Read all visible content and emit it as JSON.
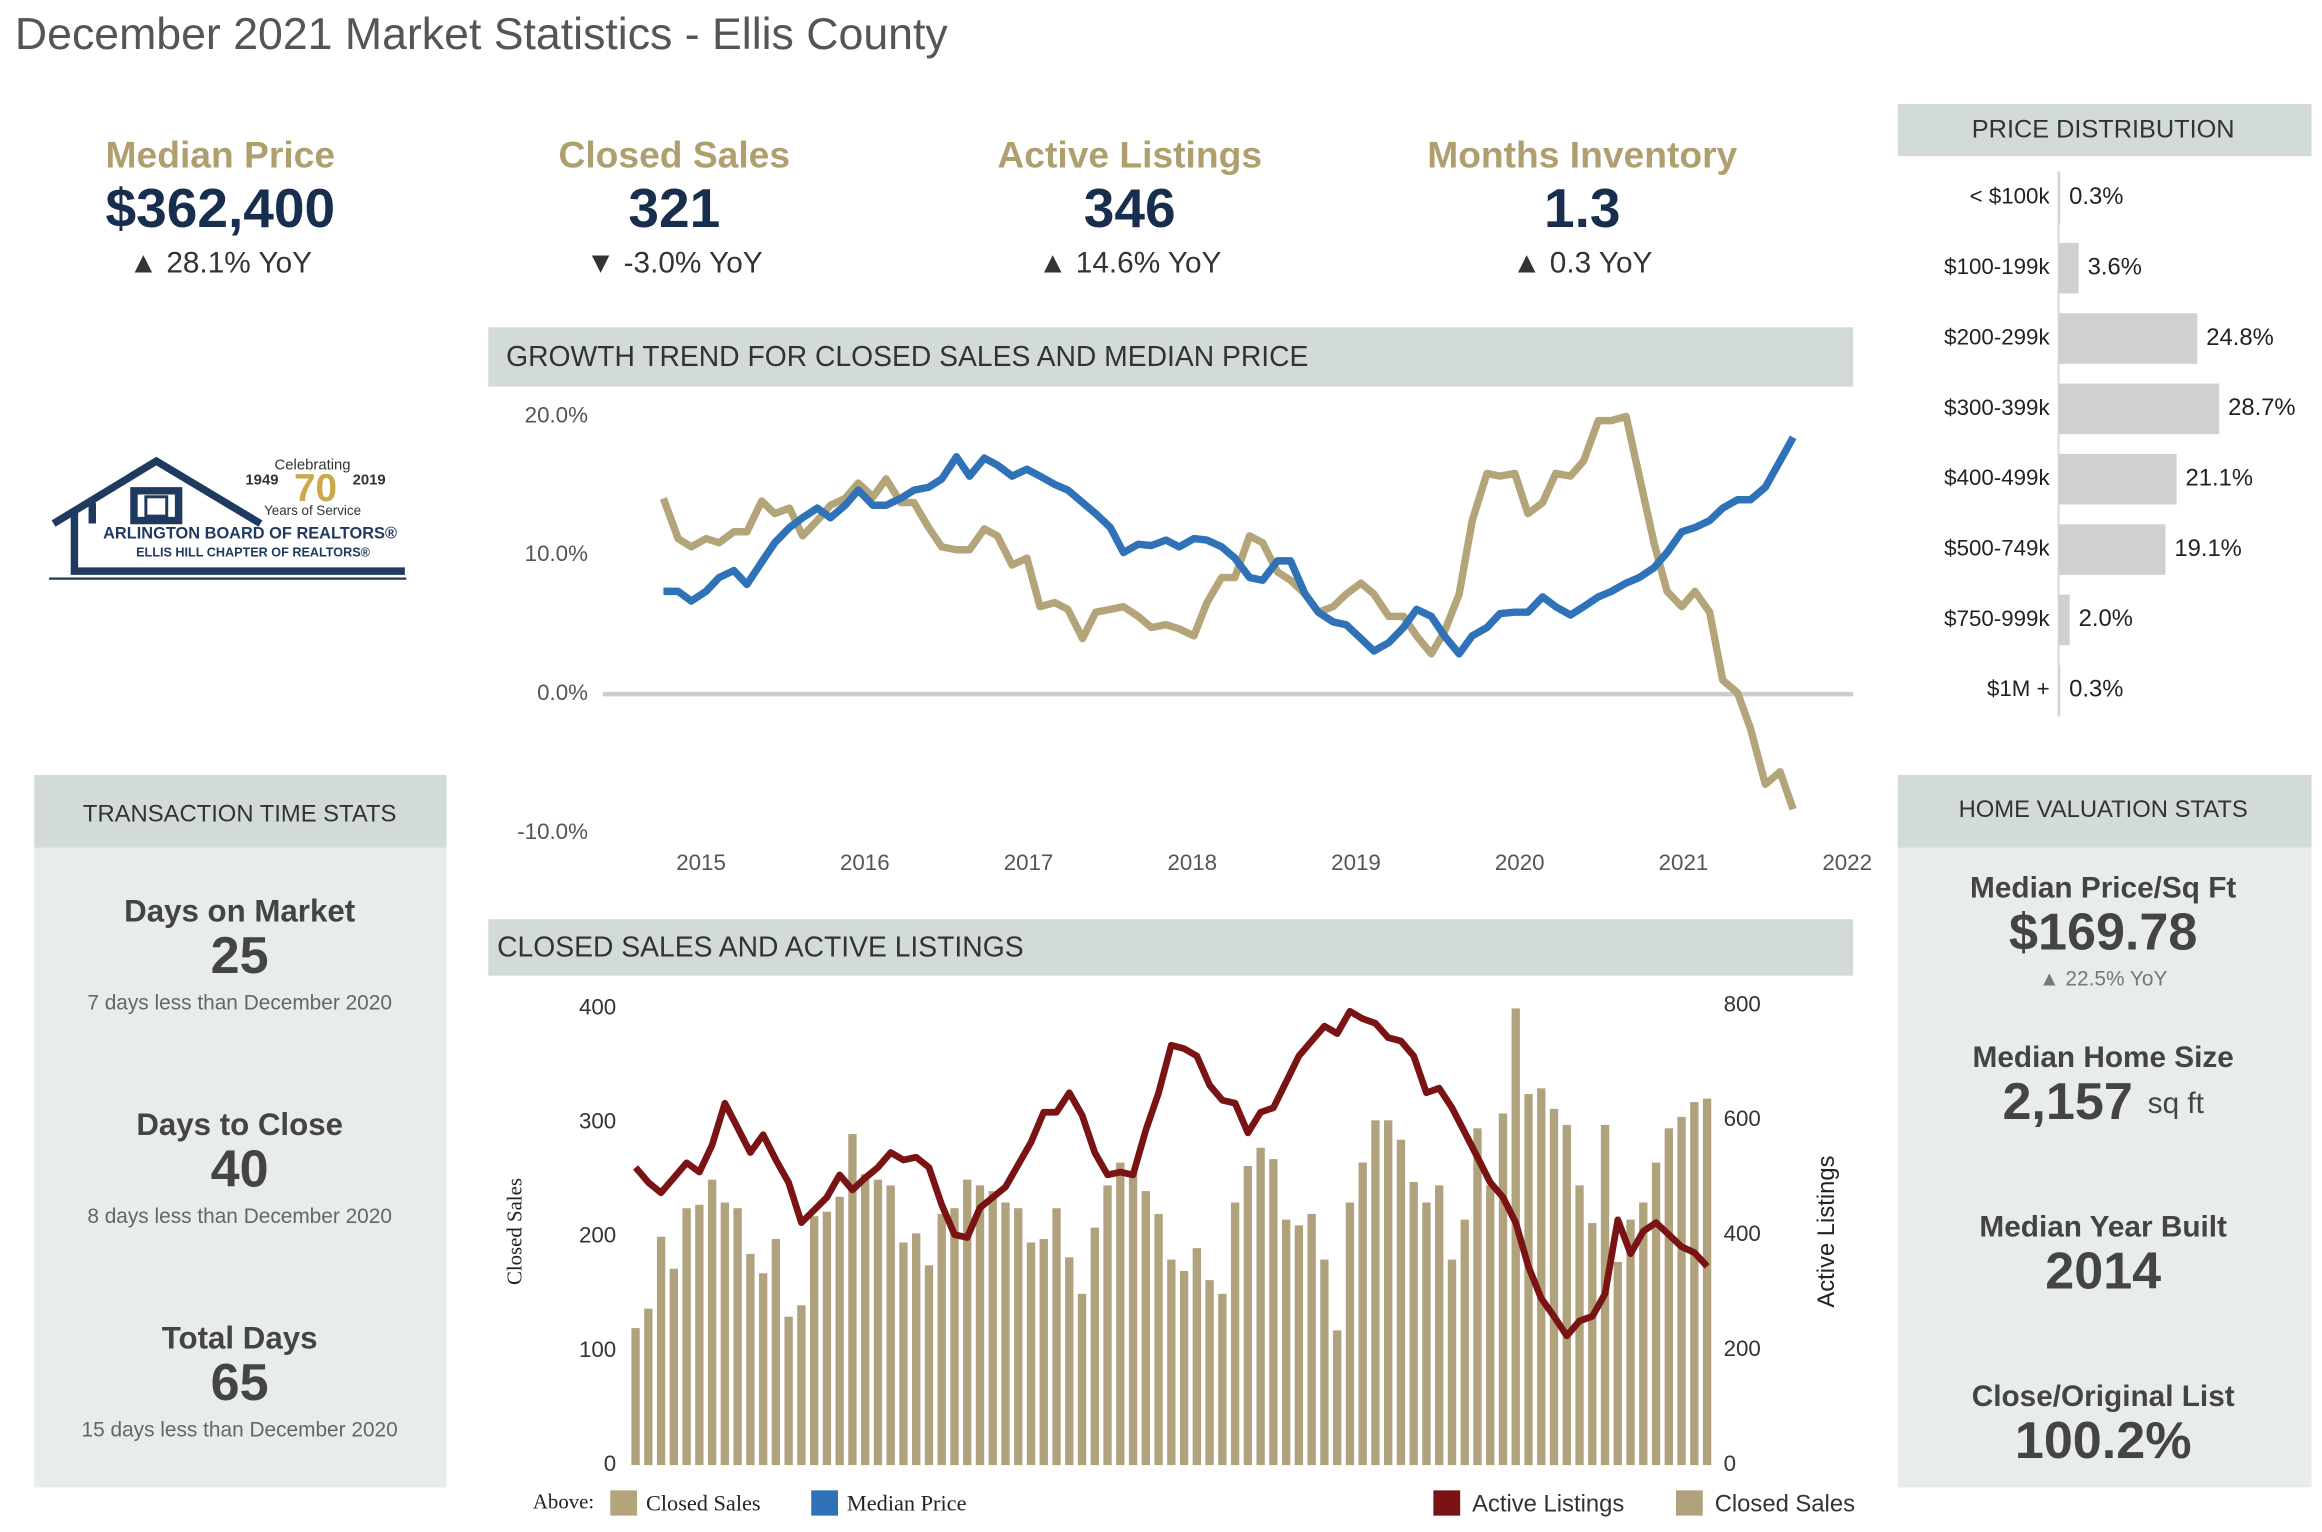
{
  "title": "December 2021 Market Statistics - Ellis County",
  "kpis": [
    {
      "label": "Median Price",
      "value": "$362,400",
      "change": "▲ 28.1% YoY"
    },
    {
      "label": "Closed Sales",
      "value": "321",
      "change": "▼ -3.0% YoY"
    },
    {
      "label": "Active Listings",
      "value": "346",
      "change": "▲ 14.6% YoY"
    },
    {
      "label": "Months Inventory",
      "value": "1.3",
      "change": "▲ 0.3 YoY"
    }
  ],
  "logo": {
    "celebrating": "Celebrating",
    "start_year": "1949",
    "years": "70",
    "end_year": "2019",
    "service": "Years of Service",
    "name": "ARLINGTON BOARD OF REALTORS®",
    "chapter": "ELLIS HILL CHAPTER OF REALTORS®"
  },
  "transaction_stats": {
    "title": "TRANSACTION TIME STATS",
    "items": [
      {
        "label": "Days on Market",
        "value": "25",
        "note": "7 days less than December 2020"
      },
      {
        "label": "Days to Close",
        "value": "40",
        "note": "8 days less than December 2020"
      },
      {
        "label": "Total Days",
        "value": "65",
        "note": "15 days less than December 2020"
      }
    ]
  },
  "home_valuation_stats": {
    "title": "HOME VALUATION STATS",
    "items": [
      {
        "label": "Median Price/Sq Ft",
        "value": "$169.78",
        "note": "▲ 22.5% YoY"
      },
      {
        "label": "Median Home Size",
        "value": "2,157",
        "unit": "sq ft"
      },
      {
        "label": "Median Year Built",
        "value": "2014"
      },
      {
        "label": "Close/Original List",
        "value": "100.2%"
      }
    ]
  },
  "chart_data": [
    {
      "type": "hbar",
      "title": "PRICE DISTRIBUTION",
      "categories": [
        "< $100k",
        "$100-199k",
        "$200-299k",
        "$300-399k",
        "$400-499k",
        "$500-749k",
        "$750-999k",
        "$1M +"
      ],
      "values": [
        0.3,
        3.6,
        24.8,
        28.7,
        21.1,
        19.1,
        2.0,
        0.3
      ],
      "value_labels": [
        "0.3%",
        "3.6%",
        "24.8%",
        "28.7%",
        "21.1%",
        "19.1%",
        "2.0%",
        "0.3%"
      ],
      "color": "#d0d0d0"
    },
    {
      "type": "line",
      "title": "GROWTH TREND FOR CLOSED SALES AND MEDIAN PRICE",
      "legend_label": "Above:",
      "x": [
        2014.77,
        2014.86,
        2014.94,
        2015.03,
        2015.11,
        2015.2,
        2015.28,
        2015.37,
        2015.45,
        2015.54,
        2015.62,
        2015.71,
        2015.79,
        2015.88,
        2015.96,
        2016.05,
        2016.13,
        2016.22,
        2016.3,
        2016.39,
        2016.47,
        2016.56,
        2016.64,
        2016.73,
        2016.81,
        2016.9,
        2016.99,
        2017.07,
        2017.16,
        2017.24,
        2017.33,
        2017.41,
        2017.5,
        2017.58,
        2017.67,
        2017.75,
        2017.84,
        2017.92,
        2018.01,
        2018.09,
        2018.18,
        2018.26,
        2018.35,
        2018.43,
        2018.52,
        2018.6,
        2018.69,
        2018.77,
        2018.86,
        2018.94,
        2019.03,
        2019.11,
        2019.2,
        2019.29,
        2019.37,
        2019.46,
        2019.54,
        2019.63,
        2019.71,
        2019.8,
        2019.88,
        2019.97,
        2020.05,
        2020.14,
        2020.22,
        2020.31,
        2020.39,
        2020.48,
        2020.56,
        2020.65,
        2020.73,
        2020.82,
        2020.9,
        2020.99,
        2021.07,
        2021.16,
        2021.24,
        2021.33,
        2021.41,
        2021.5,
        2021.59,
        2021.67
      ],
      "xlim": [
        2014.5,
        2022
      ],
      "xticks": [
        2015,
        2016,
        2017,
        2018,
        2019,
        2020,
        2021,
        2022
      ],
      "ylim": [
        -10,
        20
      ],
      "yticks": [
        {
          "value": 20,
          "label": "20.0%"
        },
        {
          "value": 10,
          "label": "10.0%"
        },
        {
          "value": 0,
          "label": "0.0%"
        },
        {
          "value": -10,
          "label": "-10.0%"
        }
      ],
      "zero_line": true,
      "series": [
        {
          "name": "Closed Sales",
          "color": "#b3a579",
          "values": [
            14.1,
            11.2,
            10.6,
            11.2,
            10.9,
            11.7,
            11.7,
            13.9,
            13,
            13.4,
            11.4,
            12.5,
            13.6,
            14.1,
            15.2,
            14.2,
            15.5,
            13.8,
            13.8,
            12,
            10.6,
            10.4,
            10.4,
            11.9,
            11.4,
            9.3,
            9.8,
            6.3,
            6.6,
            6.1,
            4,
            5.9,
            6.1,
            6.3,
            5.6,
            4.8,
            5,
            4.7,
            4.2,
            6.6,
            8.4,
            8.4,
            11.4,
            10.9,
            8.8,
            8.2,
            7.2,
            5.9,
            6.3,
            7.2,
            8,
            7.2,
            5.6,
            5.6,
            4.2,
            2.9,
            4.5,
            7.2,
            12.5,
            15.9,
            15.7,
            15.9,
            13,
            13.8,
            15.9,
            15.7,
            16.8,
            19.7,
            19.7,
            20,
            15.7,
            10.9,
            7.4,
            6.3,
            7.4,
            5.9,
            1,
            0.1,
            -2.5,
            -6.5,
            -5.6,
            -8.3
          ]
        },
        {
          "name": "Median Price",
          "color": "#2f72b8",
          "values": [
            7.4,
            7.4,
            6.7,
            7.4,
            8.4,
            8.9,
            7.9,
            9.5,
            10.9,
            12,
            12.7,
            13.4,
            12.7,
            13.6,
            14.7,
            13.6,
            13.6,
            14.1,
            14.7,
            14.9,
            15.5,
            17.1,
            15.7,
            17,
            16.5,
            15.7,
            16.2,
            15.7,
            15.1,
            14.7,
            13.8,
            13,
            12,
            10.2,
            10.8,
            10.7,
            11.1,
            10.6,
            11.2,
            11.1,
            10.6,
            9.8,
            8.4,
            8.2,
            9.6,
            9.6,
            7.2,
            5.9,
            5.2,
            5,
            4,
            3.1,
            3.7,
            4.8,
            6.1,
            5.6,
            4.2,
            2.9,
            4.2,
            4.8,
            5.8,
            5.9,
            5.9,
            7,
            6.3,
            5.7,
            6.3,
            7,
            7.4,
            8,
            8.4,
            9.1,
            10.2,
            11.7,
            12,
            12.5,
            13.4,
            14,
            14,
            14.9,
            16.8,
            18.5
          ]
        }
      ]
    },
    {
      "type": "bar_line",
      "title": "CLOSED SALES AND ACTIVE LISTINGS",
      "ylabel": "Closed Sales",
      "y2label": "Active Listings",
      "ylim": [
        0,
        400
      ],
      "yticks": [
        0,
        100,
        200,
        300,
        400
      ],
      "y2lim": [
        0,
        800
      ],
      "y2ticks": [
        0,
        200,
        400,
        600,
        800
      ],
      "series": [
        {
          "name": "Closed Sales",
          "type": "bar",
          "color": "#b0a27c",
          "values": [
            120,
            137,
            200,
            172,
            225,
            228,
            250,
            230,
            225,
            185,
            168,
            198,
            130,
            140,
            218,
            222,
            235,
            290,
            255,
            250,
            245,
            195,
            203,
            175,
            220,
            225,
            250,
            245,
            240,
            230,
            225,
            195,
            198,
            225,
            182,
            150,
            208,
            245,
            265,
            258,
            240,
            220,
            180,
            170,
            190,
            162,
            150,
            230,
            262,
            278,
            268,
            215,
            210,
            220,
            180,
            118,
            230,
            265,
            302,
            302,
            285,
            248,
            230,
            245,
            180,
            215,
            295,
            245,
            308,
            400,
            325,
            330,
            312,
            298,
            245,
            212,
            298,
            178,
            215,
            230,
            265,
            295,
            305,
            318,
            321
          ]
        },
        {
          "name": "Active Listings",
          "type": "line",
          "axis": "y2",
          "color": "#7a1313",
          "values": [
            518,
            492,
            474,
            500,
            526,
            510,
            557,
            630,
            587,
            544,
            575,
            531,
            492,
            422,
            444,
            466,
            505,
            479,
            500,
            518,
            544,
            531,
            536,
            518,
            453,
            401,
            396,
            448,
            466,
            484,
            523,
            562,
            614,
            614,
            648,
            609,
            544,
            505,
            510,
            505,
            583,
            648,
            731,
            725,
            712,
            661,
            635,
            630,
            578,
            614,
            622,
            667,
            712,
            738,
            764,
            751,
            790,
            777,
            769,
            744,
            738,
            712,
            648,
            656,
            622,
            579,
            536,
            492,
            466,
            422,
            345,
            290,
            259,
            225,
            251,
            259,
            298,
            427,
            368,
            407,
            422,
            401,
            380,
            370,
            346
          ]
        }
      ]
    }
  ]
}
